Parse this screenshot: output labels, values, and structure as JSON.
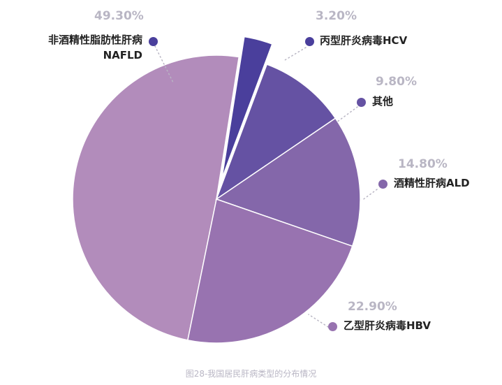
{
  "chart_data": {
    "type": "pie",
    "categories": [
      "非酒精性脂肪性肝病NAFLD",
      "丙型肝炎病毒HCV",
      "其他",
      "酒精性肝病ALD",
      "乙型肝炎病毒HBV"
    ],
    "values": [
      49.3,
      3.2,
      9.8,
      14.8,
      22.9
    ],
    "exploded": [
      false,
      true,
      false,
      false,
      false
    ],
    "colors": [
      "#b28cbb",
      "#4a3f9c",
      "#6552a3",
      "#8467aa",
      "#9873b0"
    ],
    "slices": [
      {
        "pct": "49.30%",
        "label_line1": "非酒精性脂肪性肝病",
        "label_line2": "NAFLD",
        "color": "#b28cbb",
        "dot_color": "#4a3f9c"
      },
      {
        "pct": "3.20%",
        "label_line1": "丙型肝炎病毒HCV",
        "color": "#4a3f9c",
        "dot_color": "#4a3f9c"
      },
      {
        "pct": "9.80%",
        "label_line1": "其他",
        "color": "#6552a3",
        "dot_color": "#6552a3"
      },
      {
        "pct": "14.80%",
        "label_line1": "酒精性肝病ALD",
        "color": "#8467aa",
        "dot_color": "#8467aa"
      },
      {
        "pct": "22.90%",
        "label_line1": "乙型肝炎病毒HBV",
        "color": "#9873b0",
        "dot_color": "#9873b0"
      }
    ]
  },
  "caption": "图28-我国居民肝病类型的分布情况"
}
